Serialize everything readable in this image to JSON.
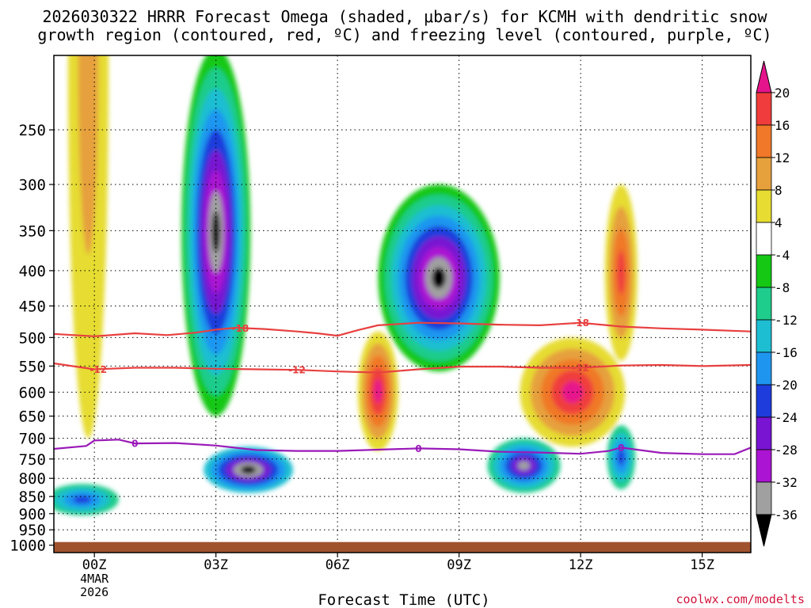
{
  "chart_data": {
    "type": "heatmap",
    "title_line1": "2026030322 HRRR Forecast Omega (shaded, μbar/s) for KCMH with dendritic snow",
    "title_line2": "growth region (contoured, red, ºC) and freezing level (contoured, purple, ºC)",
    "xlabel": "Forecast Time (UTC)",
    "ylabel": "",
    "credit": "coolwx.com/modelts",
    "x_range_hours": [
      -1.0,
      16.2
    ],
    "y_range_hpa": [
      195,
      1025
    ],
    "surface_hpa": 1000,
    "x_ticks": [
      {
        "label": "00Z",
        "hour": 0,
        "sublabels": [
          "4MAR",
          "2026"
        ]
      },
      {
        "label": "03Z",
        "hour": 3,
        "sublabels": []
      },
      {
        "label": "06Z",
        "hour": 6,
        "sublabels": []
      },
      {
        "label": "09Z",
        "hour": 9,
        "sublabels": []
      },
      {
        "label": "12Z",
        "hour": 12,
        "sublabels": []
      },
      {
        "label": "15Z",
        "hour": 15,
        "sublabels": []
      }
    ],
    "y_ticks": [
      {
        "label": "250",
        "hpa": 250
      },
      {
        "label": "300",
        "hpa": 300
      },
      {
        "label": "350",
        "hpa": 350
      },
      {
        "label": "400",
        "hpa": 400
      },
      {
        "label": "450",
        "hpa": 450
      },
      {
        "label": "500",
        "hpa": 500
      },
      {
        "label": "550",
        "hpa": 550
      },
      {
        "label": "600",
        "hpa": 600
      },
      {
        "label": "650",
        "hpa": 650
      },
      {
        "label": "700",
        "hpa": 700
      },
      {
        "label": "750",
        "hpa": 750
      },
      {
        "label": "800",
        "hpa": 800
      },
      {
        "label": "850",
        "hpa": 850
      },
      {
        "label": "900",
        "hpa": 900
      },
      {
        "label": "950",
        "hpa": 950
      },
      {
        "label": "1000",
        "hpa": 1000
      }
    ],
    "colorbar": {
      "labels": [
        "20",
        "16",
        "12",
        "8",
        "4",
        "-4",
        "-8",
        "-12",
        "-16",
        "-20",
        "-24",
        "-28",
        "-32",
        "-36"
      ],
      "bins": [
        {
          "lo": 16,
          "hi": 20,
          "color": "#f03c3c"
        },
        {
          "lo": 12,
          "hi": 16,
          "color": "#f07828"
        },
        {
          "lo": 8,
          "hi": 12,
          "color": "#e6a03c"
        },
        {
          "lo": 4,
          "hi": 8,
          "color": "#e6dc32"
        },
        {
          "lo": -4,
          "hi": 4,
          "color": "#ffffff"
        },
        {
          "lo": -8,
          "hi": -4,
          "color": "#14c814"
        },
        {
          "lo": -12,
          "hi": -8,
          "color": "#1ecc8c"
        },
        {
          "lo": -16,
          "hi": -12,
          "color": "#1ebed2"
        },
        {
          "lo": -20,
          "hi": -16,
          "color": "#1e96f0"
        },
        {
          "lo": -24,
          "hi": -20,
          "color": "#1e3cdc"
        },
        {
          "lo": -28,
          "hi": -24,
          "color": "#7814d2"
        },
        {
          "lo": -32,
          "hi": -28,
          "color": "#aa14d2"
        },
        {
          "lo": -36,
          "hi": -32,
          "color": "#a0a0a0"
        }
      ],
      "over_color": "#e6148c",
      "under_color": "#000000"
    },
    "contours": [
      {
        "name": "dgz-upper",
        "label": "-18",
        "color": "#e84040",
        "points": [
          [
            -1.0,
            494
          ],
          [
            0,
            498
          ],
          [
            1,
            493
          ],
          [
            1.8,
            496
          ],
          [
            2.5,
            492
          ],
          [
            3,
            487
          ],
          [
            3.5,
            484
          ],
          [
            4.2,
            486
          ],
          [
            5,
            490
          ],
          [
            5.5,
            493
          ],
          [
            6,
            497
          ],
          [
            6.5,
            488
          ],
          [
            7,
            480
          ],
          [
            8,
            476
          ],
          [
            9,
            477
          ],
          [
            10,
            479
          ],
          [
            11,
            480
          ],
          [
            12,
            476
          ],
          [
            13,
            482
          ],
          [
            14,
            485
          ],
          [
            15,
            487
          ],
          [
            16.2,
            490
          ]
        ],
        "label_hours": [
          3.6,
          12.0
        ]
      },
      {
        "name": "dgz-lower",
        "label": "-12",
        "color": "#e84040",
        "points": [
          [
            -1.0,
            545
          ],
          [
            0,
            556
          ],
          [
            1,
            553
          ],
          [
            2,
            553
          ],
          [
            3,
            555
          ],
          [
            4,
            556
          ],
          [
            5,
            557
          ],
          [
            6,
            560
          ],
          [
            7,
            562
          ],
          [
            8,
            556
          ],
          [
            9,
            551
          ],
          [
            10,
            551
          ],
          [
            11,
            553
          ],
          [
            12,
            553
          ],
          [
            13,
            549
          ],
          [
            14,
            548
          ],
          [
            15,
            550
          ],
          [
            16.2,
            548
          ]
        ],
        "label_hours": [
          0.1,
          5.0,
          12.0
        ]
      },
      {
        "name": "freezing-level",
        "label": "0",
        "color": "#9a1ab8",
        "points": [
          [
            -1.0,
            725
          ],
          [
            -0.2,
            718
          ],
          [
            0,
            705
          ],
          [
            0.6,
            703
          ],
          [
            1,
            712
          ],
          [
            2,
            711
          ],
          [
            3,
            717
          ],
          [
            4,
            728
          ],
          [
            5,
            730
          ],
          [
            6,
            730
          ],
          [
            7,
            727
          ],
          [
            8,
            724
          ],
          [
            9,
            726
          ],
          [
            10,
            732
          ],
          [
            11,
            734
          ],
          [
            12,
            737
          ],
          [
            12.7,
            730
          ],
          [
            13,
            722
          ],
          [
            14,
            735
          ],
          [
            15,
            738
          ],
          [
            15.8,
            738
          ],
          [
            16.2,
            722
          ]
        ],
        "label_hours": [
          1.0,
          8.0,
          13.0
        ]
      }
    ],
    "blobs": [
      {
        "name": "warm-plume-left",
        "value": 12,
        "cx": -0.15,
        "cy": 380,
        "rx": 0.5,
        "ry": 320,
        "stack": [
          "#e6dc32",
          "#e6a03c"
        ]
      },
      {
        "name": "updraft-core-03z",
        "value": -40,
        "cx": 3.0,
        "cy": 420,
        "rx": 0.85,
        "ry": 230,
        "stack": [
          "#14c814",
          "#1ecc8c",
          "#1ebed2",
          "#1e96f0",
          "#1e3cdc",
          "#7814d2",
          "#aa14d2",
          "#a0a0a0",
          "#000000"
        ]
      },
      {
        "name": "updraft-core-08z",
        "value": -40,
        "cx": 8.5,
        "cy": 430,
        "rx": 1.5,
        "ry": 130,
        "stack": [
          "#14c814",
          "#1ecc8c",
          "#1ebed2",
          "#1e96f0",
          "#1e3cdc",
          "#7814d2",
          "#aa14d2",
          "#a0a0a0",
          "#000000"
        ]
      },
      {
        "name": "updraft-lower-04z",
        "value": -40,
        "cx": 3.8,
        "cy": 780,
        "rx": 1.1,
        "ry": 60,
        "stack": [
          "#1ebed2",
          "#1e96f0",
          "#1e3cdc",
          "#7814d2",
          "#a0a0a0",
          "#000000"
        ]
      },
      {
        "name": "updraft-lower-00z",
        "value": -22,
        "cx": -0.3,
        "cy": 860,
        "rx": 0.9,
        "ry": 45,
        "stack": [
          "#1ecc8c",
          "#1ebed2",
          "#1e96f0",
          "#1e3cdc"
        ]
      },
      {
        "name": "updraft-lower-10z",
        "value": -34,
        "cx": 10.6,
        "cy": 770,
        "rx": 0.9,
        "ry": 70,
        "stack": [
          "#1ecc8c",
          "#1ebed2",
          "#1e96f0",
          "#1e3cdc",
          "#7814d2",
          "#a0a0a0"
        ]
      },
      {
        "name": "updraft-lower-13z",
        "value": -26,
        "cx": 13.0,
        "cy": 750,
        "rx": 0.35,
        "ry": 80,
        "stack": [
          "#1ecc8c",
          "#1ebed2",
          "#1e96f0",
          "#1e3cdc"
        ]
      },
      {
        "name": "subsidence-07z",
        "value": 20,
        "cx": 7.0,
        "cy": 610,
        "rx": 0.5,
        "ry": 120,
        "stack": [
          "#e6dc32",
          "#e6a03c",
          "#f07828",
          "#f03c3c",
          "#e6148c"
        ]
      },
      {
        "name": "subsidence-12z",
        "value": 22,
        "cx": 11.8,
        "cy": 610,
        "rx": 1.3,
        "ry": 110,
        "stack": [
          "#e6dc32",
          "#e6a03c",
          "#f07828",
          "#f03c3c",
          "#e6148c"
        ]
      },
      {
        "name": "subsidence-13z-upper",
        "value": 16,
        "cx": 13.0,
        "cy": 420,
        "rx": 0.4,
        "ry": 120,
        "stack": [
          "#e6dc32",
          "#e6a03c",
          "#f07828",
          "#f03c3c"
        ]
      }
    ]
  }
}
